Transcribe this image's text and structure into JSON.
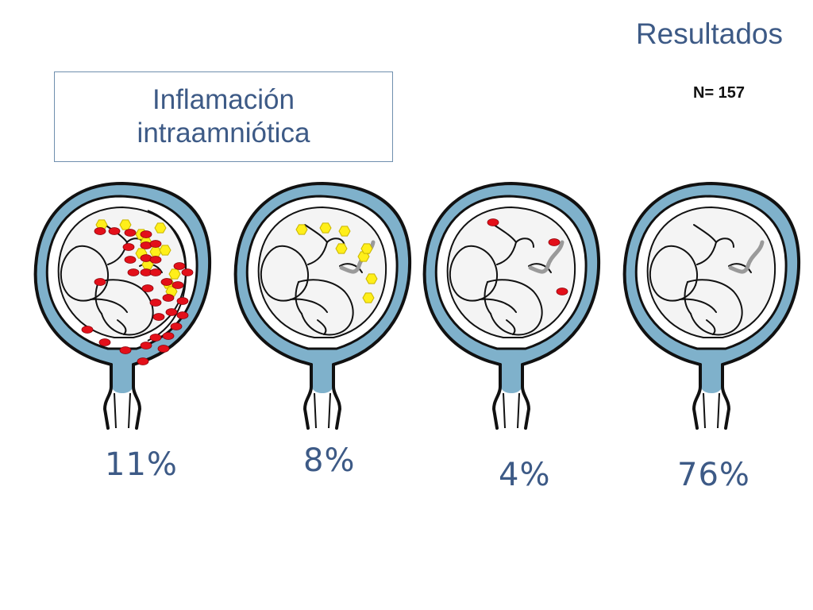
{
  "slide": {
    "heading": "Resultados",
    "title_line1": "Inflamación",
    "title_line2": "intraamniótica",
    "sample_size": "N= 157"
  },
  "colors": {
    "membrane": "#7fb1cb",
    "outline": "#111111",
    "inflammation_marker": "#e3101a",
    "infection_marker": "#ffef1a",
    "cord": "#9a9a9a",
    "text_accent": "#3d5a86"
  },
  "groups": [
    {
      "percent": "11%",
      "red_markers": 34,
      "yellow_markers": 12,
      "shows_cord": false,
      "dense_layer": true
    },
    {
      "percent": "8%",
      "red_markers": 0,
      "yellow_markers": 8,
      "shows_cord": true,
      "dense_layer": false
    },
    {
      "percent": "4%",
      "red_markers": 3,
      "yellow_markers": 0,
      "shows_cord": true,
      "dense_layer": false
    },
    {
      "percent": "76%",
      "red_markers": 0,
      "yellow_markers": 0,
      "shows_cord": true,
      "dense_layer": false
    }
  ]
}
